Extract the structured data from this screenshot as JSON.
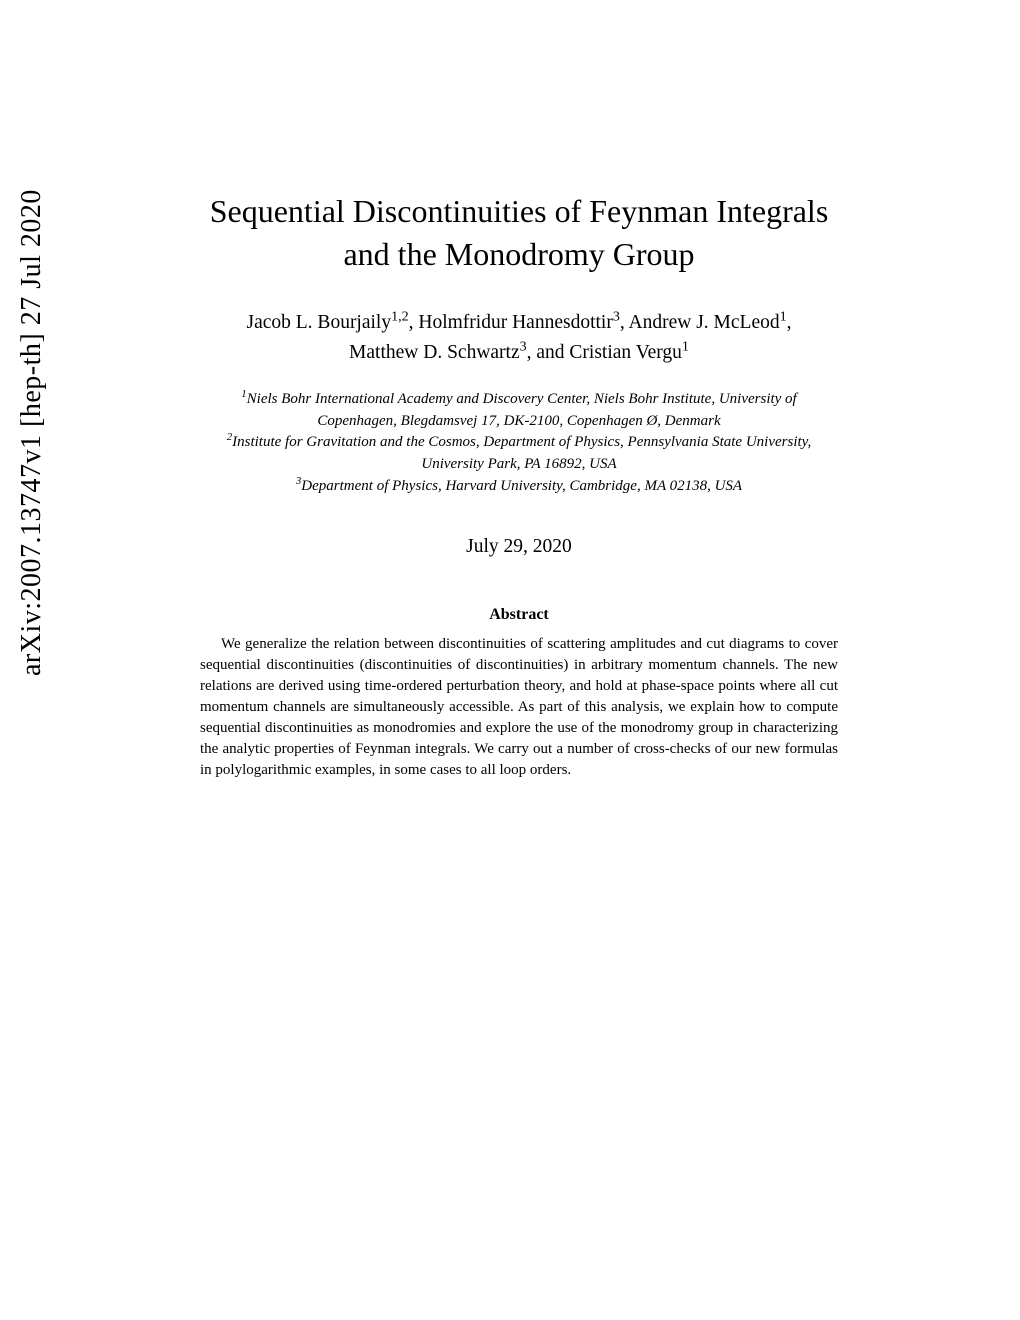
{
  "arxiv": {
    "identifier": "arXiv:2007.13747v1  [hep-th]  27 Jul 2020"
  },
  "title": {
    "line1": "Sequential Discontinuities of Feynman Integrals",
    "line2": "and the Monodromy Group"
  },
  "authors": {
    "a1_name": "Jacob L. Bourjaily",
    "a1_sup": "1,2",
    "a2_name": "Holmfridur Hannesdottir",
    "a2_sup": "3",
    "a3_name": "Andrew J. McLeod",
    "a3_sup": "1",
    "a4_name": "Matthew D. Schwartz",
    "a4_sup": "3",
    "a5_name": "Cristian Vergu",
    "a5_sup": "1"
  },
  "affiliations": {
    "aff1_sup": "1",
    "aff1_line1": "Niels Bohr International Academy and Discovery Center, Niels Bohr Institute, University of",
    "aff1_line2": "Copenhagen, Blegdamsvej 17, DK-2100, Copenhagen Ø, Denmark",
    "aff2_sup": "2",
    "aff2_line1": "Institute for Gravitation and the Cosmos, Department of Physics, Pennsylvania State University,",
    "aff2_line2": "University Park, PA 16892, USA",
    "aff3_sup": "3",
    "aff3_text": "Department of Physics, Harvard University, Cambridge, MA 02138, USA"
  },
  "date": "July 29, 2020",
  "abstract": {
    "heading": "Abstract",
    "body": "We generalize the relation between discontinuities of scattering amplitudes and cut diagrams to cover sequential discontinuities (discontinuities of discontinuities) in arbitrary momentum channels. The new relations are derived using time-ordered perturbation theory, and hold at phase-space points where all cut momentum channels are simultaneously accessible. As part of this analysis, we explain how to compute sequential discontinuities as monodromies and explore the use of the monodromy group in characterizing the analytic properties of Feynman integrals. We carry out a number of cross-checks of our new formulas in polylogarithmic examples, in some cases to all loop orders."
  }
}
